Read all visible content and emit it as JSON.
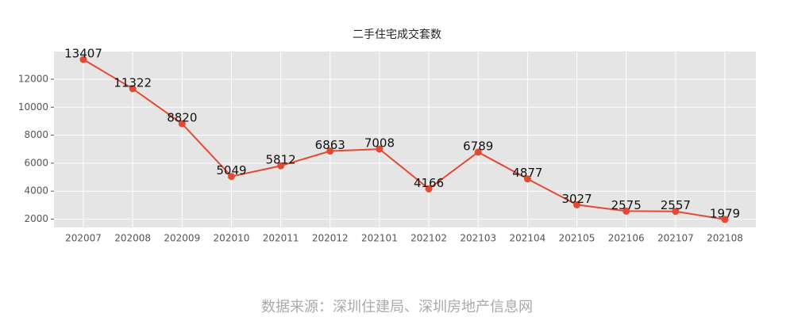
{
  "chart_data": {
    "type": "line",
    "title": "二手住宅成交套数",
    "categories": [
      "202007",
      "202008",
      "202009",
      "202010",
      "202011",
      "202012",
      "202101",
      "202102",
      "202103",
      "202104",
      "202105",
      "202106",
      "202107",
      "202108"
    ],
    "values": [
      13407,
      11322,
      8820,
      5049,
      5812,
      6863,
      7008,
      4166,
      6789,
      4877,
      3027,
      2575,
      2557,
      1979
    ],
    "color": "#e24a33",
    "ylim": [
      1408,
      13978
    ],
    "yticks": [
      2000,
      4000,
      6000,
      8000,
      10000,
      12000
    ],
    "grid": true,
    "source": "数据来源：深圳住建局、深圳房地产信息网"
  }
}
